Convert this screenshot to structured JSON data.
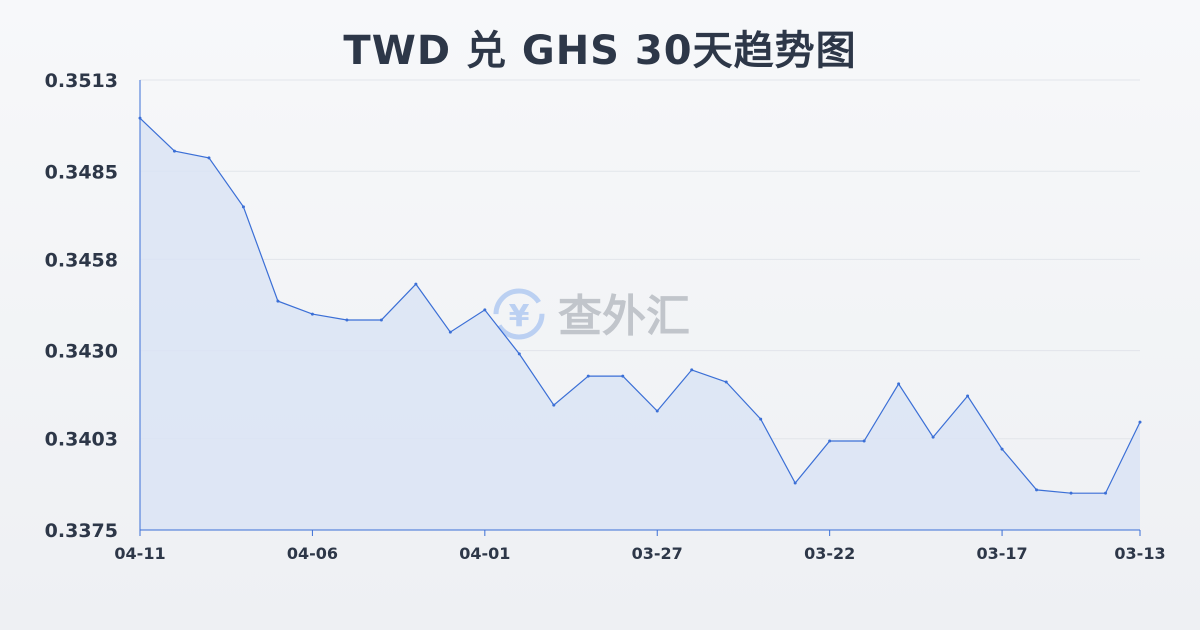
{
  "chart_data": {
    "type": "area",
    "title": "TWD 兑 GHS 30天趋势图",
    "xlabel": "",
    "ylabel": "",
    "categories": [
      "04-11",
      "04-10",
      "04-09",
      "04-08",
      "04-07",
      "04-06",
      "04-05",
      "04-04",
      "04-03",
      "04-02",
      "04-01",
      "03-31",
      "03-30",
      "03-29",
      "03-28",
      "03-27",
      "03-26",
      "03-25",
      "03-24",
      "03-23",
      "03-22",
      "03-21",
      "03-20",
      "03-19",
      "03-18",
      "03-17",
      "03-16",
      "03-15",
      "03-14",
      "03-13"
    ],
    "values": [
      0.35013,
      0.34912,
      0.34891,
      0.34741,
      0.34452,
      0.34412,
      0.34394,
      0.34394,
      0.34504,
      0.34357,
      0.34425,
      0.3429,
      0.34133,
      0.34222,
      0.34222,
      0.34115,
      0.34241,
      0.34204,
      0.3409,
      0.33894,
      0.34023,
      0.34023,
      0.34198,
      0.34035,
      0.34161,
      0.33998,
      0.33873,
      0.33863,
      0.33863,
      0.34081
    ],
    "x_tick_labels": [
      "04-11",
      "04-06",
      "04-01",
      "03-27",
      "03-22",
      "03-17",
      "03-13"
    ],
    "y_tick_labels": [
      "0.3513",
      "0.3485",
      "0.3458",
      "0.3430",
      "0.3403",
      "0.3375"
    ],
    "ylim": [
      0.3375,
      0.3513
    ],
    "grid": true,
    "line_color": "#3b6fd6",
    "fill_color": "#dbe4f5"
  },
  "watermark": {
    "text": "查外汇",
    "icon": "yen-exchange-icon"
  }
}
